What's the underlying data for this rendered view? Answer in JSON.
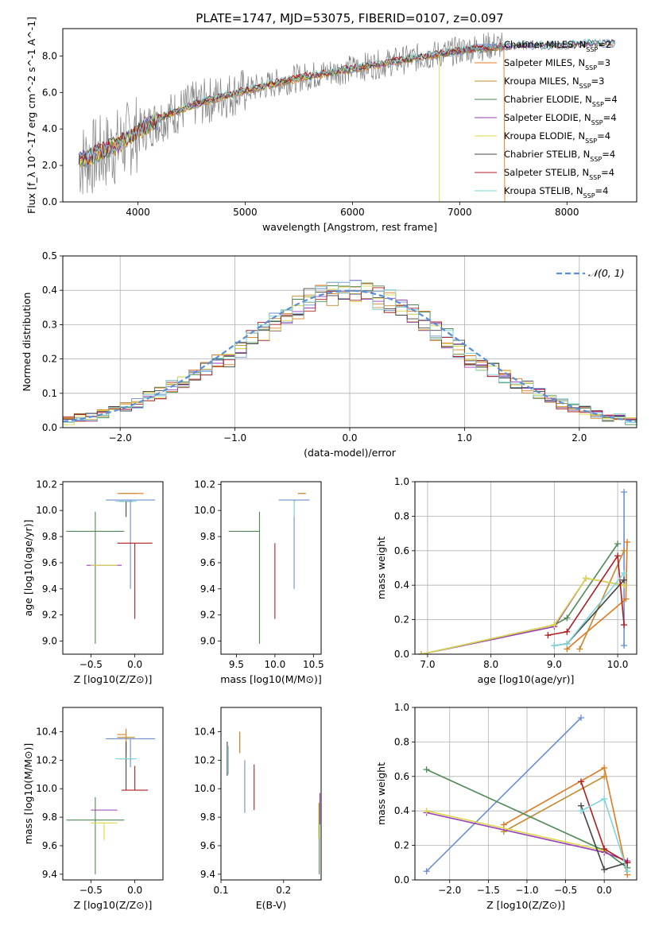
{
  "figure_title": "PLATE=1747, MJD=53075, FIBERID=0107, z=0.097",
  "legend_labels": [
    "Chabrier MILES, N_SSP=2",
    "Salpeter MILES, N_SSP=3",
    "Kroupa MILES, N_SSP=3",
    "Chabrier ELODIE, N_SSP=4",
    "Salpeter ELODIE, N_SSP=4",
    "Kroupa ELODIE, N_SSP=4",
    "Chabrier STELIB, N_SSP=4",
    "Salpeter STELIB, N_SSP=4",
    "Kroupa STELIB, N_SSP=4"
  ],
  "colors": [
    "#6b8fd4",
    "#e07a20",
    "#c48a2e",
    "#4f8a55",
    "#9a3fb8",
    "#d9d94a",
    "#444444",
    "#b01c20",
    "#7fd6d9"
  ],
  "chart_data": [
    {
      "id": "spectrum",
      "type": "line",
      "xlabel": "wavelength [Angstrom, rest frame]",
      "ylabel": "Flux [f_λ 10^-17 erg cm^-2 s^-1 A^-1]",
      "xlim": [
        3300,
        8650
      ],
      "ylim": [
        0,
        9.5
      ],
      "xticks": [
        4000,
        5000,
        6000,
        7000,
        8000
      ],
      "yticks": [
        0,
        2,
        4,
        6,
        8
      ],
      "legend_position": "upper right",
      "grid": false,
      "data_curve": {
        "x": [
          3450,
          3600,
          3800,
          4000,
          4200,
          4500,
          4800,
          5000,
          5200,
          5500,
          5800,
          6000,
          6300,
          6600,
          6800,
          7000,
          7200,
          7400
        ],
        "y": [
          2.2,
          2.5,
          3.0,
          3.8,
          4.5,
          5.3,
          5.8,
          6.1,
          6.4,
          6.8,
          7.1,
          7.3,
          7.6,
          7.9,
          8.1,
          8.3,
          8.5,
          8.6
        ]
      },
      "model_curve": {
        "x": [
          3450,
          3600,
          3800,
          4000,
          4200,
          4500,
          4800,
          5000,
          5200,
          5500,
          5800,
          6000,
          6300,
          6600,
          6800,
          7000,
          7200,
          7400,
          7600,
          7800,
          8000,
          8200,
          8400
        ],
        "y": [
          2.3,
          2.6,
          3.1,
          3.9,
          4.6,
          5.3,
          5.8,
          6.1,
          6.4,
          6.8,
          7.1,
          7.3,
          7.6,
          7.9,
          8.1,
          8.3,
          8.4,
          8.5,
          8.6,
          8.6,
          8.6,
          8.7,
          8.7
        ]
      }
    },
    {
      "id": "residuals",
      "type": "bar",
      "xlabel": "(data-model)/error",
      "ylabel": "Normed distribution",
      "xlim": [
        -2.5,
        2.5
      ],
      "ylim": [
        0,
        0.5
      ],
      "xticks": [
        -2,
        -1,
        0,
        1,
        2
      ],
      "yticks": [
        0.0,
        0.1,
        0.2,
        0.3,
        0.4,
        0.5
      ],
      "grid": true,
      "legend_position": "upper right",
      "reference_label": "𝒩(0, 1)",
      "bin_edges_range": [
        -2.5,
        2.5
      ],
      "n_bins": 50,
      "histogram_values": [
        0.02,
        0.03,
        0.03,
        0.04,
        0.05,
        0.06,
        0.07,
        0.09,
        0.1,
        0.12,
        0.13,
        0.15,
        0.17,
        0.19,
        0.2,
        0.23,
        0.26,
        0.28,
        0.31,
        0.33,
        0.35,
        0.37,
        0.38,
        0.39,
        0.4,
        0.4,
        0.39,
        0.38,
        0.37,
        0.35,
        0.33,
        0.31,
        0.28,
        0.26,
        0.23,
        0.2,
        0.19,
        0.17,
        0.15,
        0.13,
        0.12,
        0.1,
        0.09,
        0.07,
        0.06,
        0.05,
        0.04,
        0.03,
        0.03,
        0.02
      ]
    },
    {
      "id": "z_age",
      "type": "scatter",
      "xlabel": "Z [log10(Z/Z⊙)]",
      "ylabel": "age  [log10(age/yr)]",
      "xlim": [
        -0.82,
        0.32
      ],
      "ylim": [
        8.9,
        10.22
      ],
      "xticks": [
        -0.5,
        0.0
      ],
      "yticks": [
        9.0,
        9.2,
        9.4,
        9.6,
        9.8,
        10.0,
        10.2
      ],
      "grid": false,
      "points": [
        {
          "series": 0,
          "x": -0.05,
          "y": 10.08,
          "xerr": [
            0.28,
            0.28
          ],
          "yerr": [
            0.68,
            0.0
          ]
        },
        {
          "series": 1,
          "x": -0.05,
          "y": 10.13,
          "xerr": [
            0.15,
            0.15
          ],
          "yerr": [
            0.0,
            0.0
          ]
        },
        {
          "series": 2,
          "x": -0.08,
          "y": 10.13,
          "xerr": [
            0.1,
            0.1
          ],
          "yerr": [
            0.0,
            0.0
          ]
        },
        {
          "series": 3,
          "x": -0.45,
          "y": 9.84,
          "xerr": [
            0.33,
            0.33
          ],
          "yerr": [
            0.86,
            0.15
          ]
        },
        {
          "series": 4,
          "x": -0.35,
          "y": 9.58,
          "xerr": [
            0.2,
            0.2
          ],
          "yerr": [
            0.0,
            0.0
          ]
        },
        {
          "series": 5,
          "x": -0.35,
          "y": 9.58,
          "xerr": [
            0.15,
            0.15
          ],
          "yerr": [
            0.0,
            0.0
          ]
        },
        {
          "series": 6,
          "x": -0.1,
          "y": 10.07,
          "xerr": [
            0.08,
            0.08
          ],
          "yerr": [
            0.12,
            0.0
          ]
        },
        {
          "series": 7,
          "x": 0.0,
          "y": 9.75,
          "xerr": [
            0.2,
            0.2
          ],
          "yerr": [
            0.58,
            0.0
          ]
        },
        {
          "series": 8,
          "x": -0.1,
          "y": 10.07,
          "xerr": [
            0.12,
            0.12
          ],
          "yerr": [
            0.0,
            0.0
          ]
        }
      ]
    },
    {
      "id": "mass_age",
      "type": "scatter",
      "xlabel": "mass [log10(M/M⊙)]",
      "ylabel": "",
      "xlim": [
        9.3,
        10.6
      ],
      "ylim": [
        8.9,
        10.22
      ],
      "xticks": [
        9.5,
        10.0,
        10.5
      ],
      "yticks": [
        9.0,
        9.2,
        9.4,
        9.6,
        9.8,
        10.0,
        10.2
      ],
      "grid": false,
      "points": [
        {
          "series": 0,
          "x": 10.25,
          "y": 10.08,
          "xerr": [
            0.2,
            0.2
          ],
          "yerr": [
            0.68,
            0.0
          ]
        },
        {
          "series": 1,
          "x": 10.35,
          "y": 10.13,
          "xerr": [
            0.05,
            0.05
          ],
          "yerr": [
            0.0,
            0.0
          ]
        },
        {
          "series": 2,
          "x": 10.35,
          "y": 10.13,
          "xerr": [
            0.05,
            0.05
          ],
          "yerr": [
            0.0,
            0.0
          ]
        },
        {
          "series": 3,
          "x": 9.8,
          "y": 9.84,
          "xerr": [
            0.4,
            0.0
          ],
          "yerr": [
            0.86,
            0.15
          ]
        },
        {
          "series": 4,
          "x": 9.88,
          "y": 9.58,
          "xerr": [
            0.0,
            0.0
          ],
          "yerr": [
            0.0,
            0.0
          ]
        },
        {
          "series": 5,
          "x": 9.82,
          "y": 9.58,
          "xerr": [
            0.0,
            0.0
          ],
          "yerr": [
            0.0,
            0.0
          ]
        },
        {
          "series": 6,
          "x": 10.22,
          "y": 10.07,
          "xerr": [
            0.0,
            0.0
          ],
          "yerr": [
            0.0,
            0.0
          ]
        },
        {
          "series": 7,
          "x": 10.0,
          "y": 9.75,
          "xerr": [
            0.0,
            0.0
          ],
          "yerr": [
            0.58,
            0.0
          ]
        },
        {
          "series": 8,
          "x": 10.25,
          "y": 10.07,
          "xerr": [
            0.0,
            0.0
          ],
          "yerr": [
            0.12,
            0.0
          ]
        }
      ]
    },
    {
      "id": "age_weight",
      "type": "line",
      "xlabel": "age  [log10(age/yr)]",
      "ylabel": "mass weight",
      "xlim": [
        6.8,
        10.3
      ],
      "ylim": [
        0,
        1.0
      ],
      "xticks": [
        7,
        8,
        9,
        10
      ],
      "yticks": [
        0.0,
        0.2,
        0.4,
        0.6,
        0.8,
        1.0
      ],
      "grid": true,
      "series": [
        {
          "x": [
            10.1,
            10.1
          ],
          "y": [
            0.05,
            0.94
          ]
        },
        {
          "x": [
            9.2,
            10.13,
            10.15
          ],
          "y": [
            0.03,
            0.32,
            0.65
          ]
        },
        {
          "x": [
            9.4,
            10.1
          ],
          "y": [
            0.03,
            0.6
          ]
        },
        {
          "x": [
            6.9,
            9.0,
            9.2,
            10.0
          ],
          "y": [
            0.0,
            0.17,
            0.21,
            0.64
          ]
        },
        {
          "x": [
            6.9,
            9.0,
            9.5,
            10.1
          ],
          "y": [
            0.0,
            0.16,
            0.44,
            0.4
          ]
        },
        {
          "x": [
            6.9,
            9.0,
            9.5,
            10.1
          ],
          "y": [
            0.0,
            0.17,
            0.44,
            0.4
          ]
        },
        {
          "x": [
            9.0,
            9.2,
            10.1
          ],
          "y": [
            0.05,
            0.06,
            0.43
          ]
        },
        {
          "x": [
            8.9,
            9.2,
            10.0,
            10.1
          ],
          "y": [
            0.11,
            0.13,
            0.57,
            0.17
          ]
        },
        {
          "x": [
            9.0,
            9.2,
            10.1
          ],
          "y": [
            0.05,
            0.06,
            0.47
          ]
        }
      ]
    },
    {
      "id": "z_mass",
      "type": "scatter",
      "xlabel": "Z [log10(Z/Z⊙)]",
      "ylabel": "mass [log10(M/M⊙)]",
      "xlim": [
        -0.82,
        0.32
      ],
      "ylim": [
        9.36,
        10.57
      ],
      "xticks": [
        -0.5,
        0.0
      ],
      "yticks": [
        9.4,
        9.6,
        9.8,
        10.0,
        10.2,
        10.4
      ],
      "grid": false,
      "points": [
        {
          "series": 0,
          "x": -0.05,
          "y": 10.35,
          "xerr": [
            0.28,
            0.28
          ],
          "yerr": [
            0.2,
            0.0
          ]
        },
        {
          "series": 1,
          "x": -0.1,
          "y": 10.38,
          "xerr": [
            0.1,
            0.0
          ],
          "yerr": [
            0.15,
            0.04
          ]
        },
        {
          "series": 2,
          "x": -0.1,
          "y": 10.36,
          "xerr": [
            0.1,
            0.1
          ],
          "yerr": [
            0.1,
            0.05
          ]
        },
        {
          "series": 3,
          "x": -0.45,
          "y": 9.78,
          "xerr": [
            0.33,
            0.33
          ],
          "yerr": [
            0.38,
            0.16
          ]
        },
        {
          "series": 4,
          "x": -0.35,
          "y": 9.85,
          "xerr": [
            0.15,
            0.15
          ],
          "yerr": [
            0.0,
            0.0
          ]
        },
        {
          "series": 5,
          "x": -0.35,
          "y": 9.76,
          "xerr": [
            0.15,
            0.15
          ],
          "yerr": [
            0.12,
            0.0
          ]
        },
        {
          "series": 6,
          "x": -0.1,
          "y": 10.21,
          "xerr": [
            0.08,
            0.08
          ],
          "yerr": [
            0.22,
            0.12
          ]
        },
        {
          "series": 7,
          "x": 0.0,
          "y": 9.99,
          "xerr": [
            0.15,
            0.15
          ],
          "yerr": [
            0.0,
            0.17
          ]
        },
        {
          "series": 8,
          "x": -0.1,
          "y": 10.21,
          "xerr": [
            0.12,
            0.12
          ],
          "yerr": [
            0.0,
            0.0
          ]
        }
      ]
    },
    {
      "id": "ebv_mass",
      "type": "scatter",
      "xlabel": "E(B-V)",
      "ylabel": "",
      "xlim": [
        0.1,
        0.26
      ],
      "ylim": [
        9.36,
        10.57
      ],
      "xticks": [
        0.1,
        0.2
      ],
      "yticks": [
        9.4,
        9.6,
        9.8,
        10.0,
        10.2,
        10.4
      ],
      "grid": false,
      "points": [
        {
          "series": 0,
          "x": 0.138,
          "y": 10.0,
          "xerr": [
            0.0,
            0.0
          ],
          "yerr": [
            0.17,
            0.2
          ]
        },
        {
          "series": 1,
          "x": 0.13,
          "y": 10.3,
          "xerr": [
            0.0,
            0.0
          ],
          "yerr": [
            0.05,
            0.1
          ]
        },
        {
          "series": 2,
          "x": 0.13,
          "y": 10.3,
          "xerr": [
            0.0,
            0.0
          ],
          "yerr": [
            0.05,
            0.1
          ]
        },
        {
          "series": 3,
          "x": 0.257,
          "y": 9.7,
          "xerr": [
            0.0,
            0.0
          ],
          "yerr": [
            0.3,
            0.2
          ]
        },
        {
          "series": 4,
          "x": 0.258,
          "y": 9.85,
          "xerr": [
            0.0,
            0.0
          ],
          "yerr": [
            0.1,
            0.12
          ]
        },
        {
          "series": 5,
          "x": 0.256,
          "y": 9.75,
          "xerr": [
            0.0,
            0.0
          ],
          "yerr": [
            0.1,
            0.15
          ]
        },
        {
          "series": 6,
          "x": 0.11,
          "y": 10.22,
          "xerr": [
            0.0,
            0.0
          ],
          "yerr": [
            0.13,
            0.11
          ]
        },
        {
          "series": 7,
          "x": 0.153,
          "y": 10.0,
          "xerr": [
            0.0,
            0.0
          ],
          "yerr": [
            0.15,
            0.17
          ]
        },
        {
          "series": 8,
          "x": 0.112,
          "y": 10.2,
          "xerr": [
            0.0,
            0.0
          ],
          "yerr": [
            0.1,
            0.1
          ]
        }
      ]
    },
    {
      "id": "z_weight",
      "type": "line",
      "xlabel": "Z [log10(Z/Z⊙)]",
      "ylabel": "mass weight",
      "xlim": [
        -2.45,
        0.42
      ],
      "ylim": [
        0,
        1.0
      ],
      "xticks": [
        -2.0,
        -1.5,
        -1.0,
        -0.5,
        0.0
      ],
      "yticks": [
        0.0,
        0.2,
        0.4,
        0.6,
        0.8,
        1.0
      ],
      "grid": true,
      "series": [
        {
          "x": [
            -2.3,
            -0.3
          ],
          "y": [
            0.05,
            0.94
          ]
        },
        {
          "x": [
            -1.3,
            0.0,
            0.3
          ],
          "y": [
            0.32,
            0.65,
            0.03
          ]
        },
        {
          "x": [
            -1.3,
            0.0
          ],
          "y": [
            0.28,
            0.6
          ]
        },
        {
          "x": [
            -2.3,
            0.0,
            0.3
          ],
          "y": [
            0.64,
            0.17,
            0.07
          ]
        },
        {
          "x": [
            -2.3,
            0.0,
            0.3
          ],
          "y": [
            0.39,
            0.16,
            0.11
          ]
        },
        {
          "x": [
            -2.3,
            0.0
          ],
          "y": [
            0.4,
            0.17
          ]
        },
        {
          "x": [
            -0.3,
            0.0,
            0.3
          ],
          "y": [
            0.43,
            0.06,
            0.1
          ]
        },
        {
          "x": [
            -0.3,
            0.0,
            0.3
          ],
          "y": [
            0.57,
            0.18,
            0.1
          ]
        },
        {
          "x": [
            -0.3,
            0.0,
            0.3
          ],
          "y": [
            0.4,
            0.47,
            0.05
          ]
        }
      ]
    }
  ]
}
